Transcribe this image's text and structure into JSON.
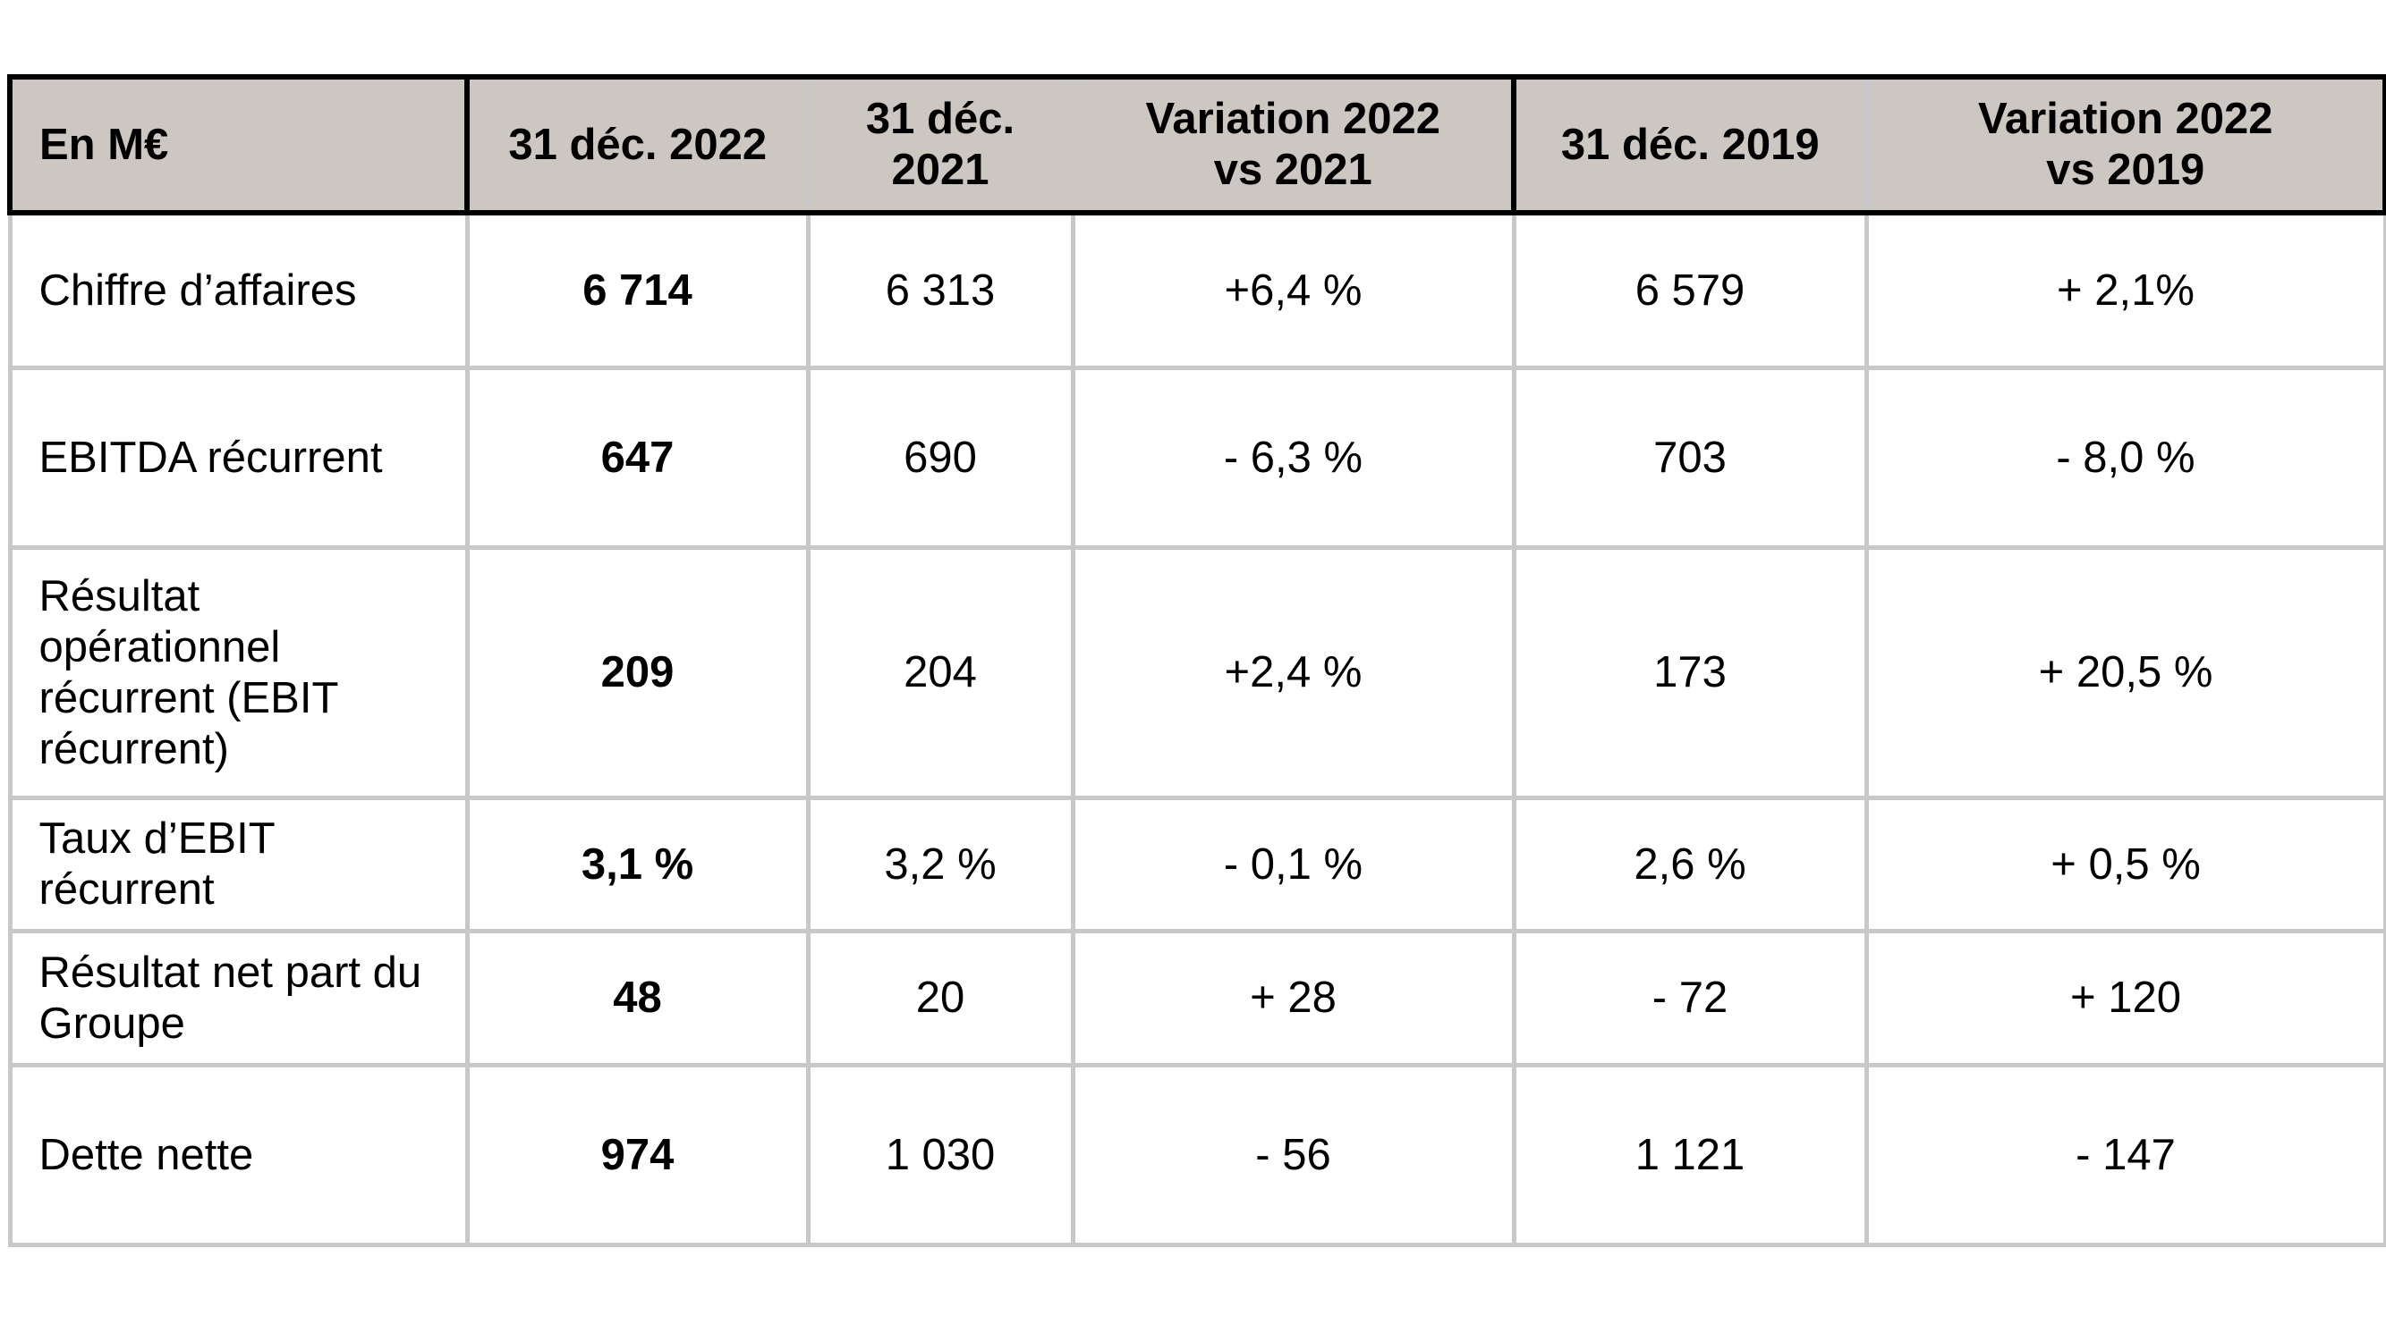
{
  "table": {
    "headers": [
      "En M€",
      "31 déc. 2022",
      "31 déc.\n2021",
      "Variation 2022\nvs 2021",
      "31 déc. 2019",
      "Variation 2022\nvs 2019"
    ],
    "rows": [
      {
        "label": "Chiffre d’affaires",
        "values": [
          "6 714",
          "6 313",
          "+6,4 %",
          "6 579",
          "+ 2,1%"
        ]
      },
      {
        "label": "EBITDA récurrent",
        "values": [
          "647",
          "690",
          "- 6,3 %",
          "703",
          "- 8,0 %"
        ]
      },
      {
        "label": "Résultat\nopérationnel\nrécurrent (EBIT\nrécurrent)",
        "values": [
          "209",
          "204",
          "+2,4 %",
          "173",
          "+ 20,5 %"
        ]
      },
      {
        "label": "Taux d’EBIT\nrécurrent",
        "values": [
          "3,1 %",
          "3,2 %",
          "- 0,1 %",
          "2,6 %",
          "+ 0,5 %"
        ]
      },
      {
        "label": "Résultat net part du\nGroupe",
        "values": [
          "48",
          "20",
          "+ 28",
          "- 72",
          "+ 120"
        ]
      },
      {
        "label": "Dette nette",
        "values": [
          "974",
          "1 030",
          "- 56",
          "1 121",
          "- 147"
        ]
      }
    ]
  }
}
